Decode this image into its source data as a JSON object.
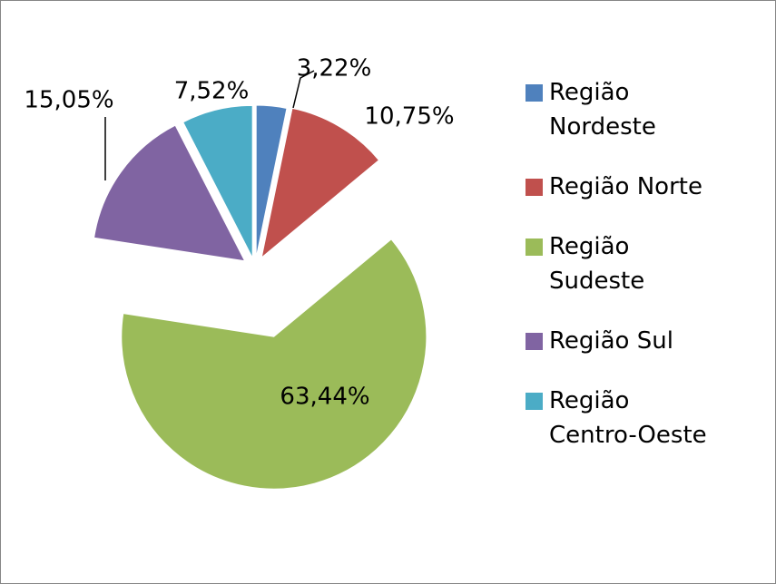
{
  "chart_data": {
    "type": "pie",
    "categories": [
      "Região Nordeste",
      "Região Norte",
      "Região Sudeste",
      "Região Sul",
      "Região Centro-Oeste"
    ],
    "values": [
      3.22,
      10.75,
      63.44,
      15.05,
      7.52
    ],
    "value_labels": [
      "3,22%",
      "10,75%",
      "63,44%",
      "15,05%",
      "7,52%"
    ],
    "colors": [
      "#4f81bd",
      "#c0504d",
      "#9bbb59",
      "#8064a2",
      "#4bacc6"
    ],
    "legend": "right"
  }
}
